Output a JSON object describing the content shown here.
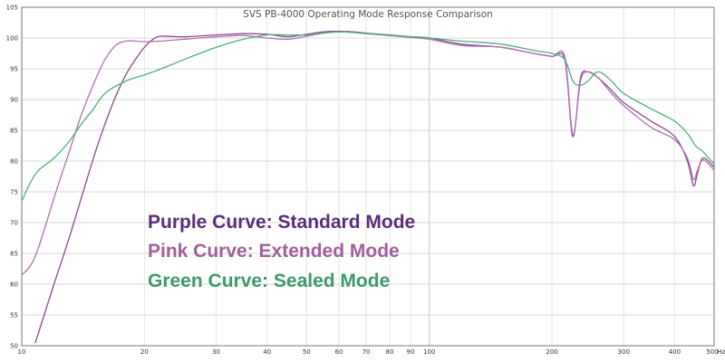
{
  "chart_data": {
    "type": "line",
    "title": "SVS PB-4000 Operating Mode Response Comparison",
    "xlabel": "",
    "ylabel": "",
    "x_scale": "log",
    "xlim": [
      10,
      500
    ],
    "ylim": [
      50,
      105
    ],
    "x_unit_label": "Hz",
    "x_ticks": [
      {
        "value": 10,
        "label": "10"
      },
      {
        "value": 20,
        "label": "20"
      },
      {
        "value": 30,
        "label": "30"
      },
      {
        "value": 40,
        "label": "40"
      },
      {
        "value": 50,
        "label": "50"
      },
      {
        "value": 60,
        "label": "60"
      },
      {
        "value": 70,
        "label": "70"
      },
      {
        "value": 80,
        "label": "80"
      },
      {
        "value": 90,
        "label": "90"
      },
      {
        "value": 100,
        "label": "100"
      },
      {
        "value": 200,
        "label": "200"
      },
      {
        "value": 300,
        "label": "300"
      },
      {
        "value": 400,
        "label": "400"
      },
      {
        "value": 500,
        "label": "500"
      }
    ],
    "y_ticks": [
      50,
      55,
      60,
      65,
      70,
      75,
      80,
      85,
      90,
      95,
      100,
      105
    ],
    "grid": true,
    "annotations": [
      {
        "text": "Purple Curve: Standard Mode",
        "color": "#5a2d7a"
      },
      {
        "text": "Pink Curve: Extended Mode",
        "color": "#a0609a"
      },
      {
        "text": "Green Curve: Sealed Mode",
        "color": "#3e9a6a"
      }
    ],
    "series": [
      {
        "color": "#8a4a8e",
        "x": [
          10.8,
          12,
          13,
          14,
          15,
          16,
          17,
          18,
          19,
          20,
          21,
          22,
          25,
          30,
          35,
          40,
          45,
          50,
          55,
          60,
          65,
          70,
          80,
          90,
          100,
          120,
          150,
          180,
          200,
          215,
          225,
          235,
          245,
          260,
          280,
          300,
          350,
          400,
          430,
          445,
          455,
          470,
          500
        ],
        "y": [
          50.5,
          60,
          67,
          74,
          80.5,
          86,
          90.5,
          94,
          96.5,
          98.5,
          99.8,
          100.3,
          100.2,
          100.5,
          100.7,
          100.6,
          100.2,
          100.6,
          101,
          101.1,
          101,
          100.8,
          100.5,
          100.2,
          100,
          99,
          98.5,
          97.5,
          97,
          96.5,
          84,
          93.5,
          94.5,
          93.5,
          91.5,
          89.5,
          86.5,
          84,
          80,
          76,
          78,
          80.5,
          79
        ]
      },
      {
        "color": "#b070b0",
        "x": [
          10,
          10.5,
          11,
          12,
          13,
          14,
          15,
          16,
          17,
          18,
          19,
          20,
          22,
          25,
          30,
          35,
          40,
          45,
          50,
          55,
          60,
          65,
          70,
          80,
          90,
          100,
          120,
          150,
          180,
          200,
          215,
          225,
          235,
          245,
          260,
          280,
          300,
          350,
          400,
          430,
          445,
          455,
          470,
          500
        ],
        "y": [
          61.5,
          63,
          66,
          74,
          81,
          87.5,
          92.5,
          96.5,
          98.8,
          99.5,
          99.5,
          99.4,
          99.5,
          99.8,
          100.2,
          100.4,
          100,
          99.8,
          100.3,
          100.8,
          101,
          100.9,
          100.7,
          100.4,
          100.1,
          99.8,
          98.8,
          98.5,
          97.5,
          97,
          97,
          84.3,
          93,
          94.5,
          93.5,
          91,
          89,
          85.5,
          83.5,
          80.5,
          77,
          78.5,
          80.2,
          78.5
        ]
      },
      {
        "color": "#4fae80",
        "x": [
          10,
          10.5,
          11,
          12,
          13,
          14,
          15,
          16,
          18,
          20,
          22,
          25,
          30,
          35,
          40,
          45,
          50,
          55,
          60,
          65,
          70,
          80,
          90,
          100,
          120,
          150,
          180,
          200,
          215,
          225,
          235,
          245,
          260,
          280,
          300,
          350,
          400,
          430,
          450,
          470,
          500
        ],
        "y": [
          73.5,
          76.5,
          78.5,
          80.5,
          83,
          86,
          88.5,
          91,
          93,
          94,
          95,
          96.5,
          98.5,
          99.8,
          100.5,
          100.5,
          100.5,
          100.8,
          101,
          100.9,
          100.7,
          100.5,
          100.2,
          100,
          99.5,
          99,
          98,
          97.5,
          96.5,
          93,
          92.3,
          93,
          94.5,
          93,
          91,
          88.5,
          86.5,
          84.5,
          82.5,
          81.5,
          79.5
        ]
      }
    ]
  }
}
